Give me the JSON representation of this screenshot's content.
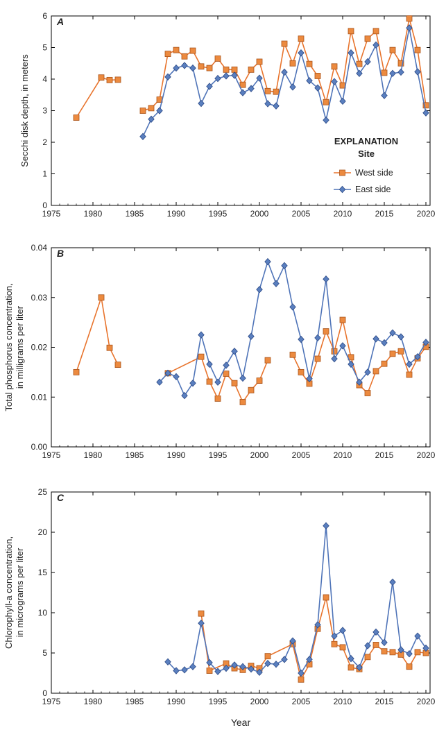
{
  "chart_data": [
    {
      "type": "line",
      "panel_label": "A",
      "ylabel_lines": [
        "Secchi disk depth, in meters"
      ],
      "xlabel": "",
      "xlim": [
        1975,
        2020.5
      ],
      "ylim": [
        0,
        6
      ],
      "xticks": [
        1975,
        1980,
        1985,
        1990,
        1995,
        2000,
        2005,
        2010,
        2015,
        2020
      ],
      "yticks": [
        "0",
        "1",
        "2",
        "3",
        "4",
        "5",
        "6"
      ],
      "legend": {
        "title": "EXPLANATION",
        "subtitle": "Site",
        "entries": [
          "West side",
          "East side"
        ]
      },
      "series": [
        {
          "name": "West side",
          "x": [
            1978,
            1981,
            1982,
            1983,
            null,
            1986,
            1987,
            1988,
            1989,
            1990,
            1991,
            1992,
            1993,
            1994,
            1995,
            1996,
            1997,
            1998,
            1999,
            2000,
            2001,
            2002,
            2003,
            2004,
            2005,
            2006,
            2007,
            2008,
            2009,
            2010,
            2011,
            2012,
            2013,
            2014,
            2015,
            2016,
            2017,
            2018,
            2019,
            2020
          ],
          "y": [
            2.78,
            4.05,
            3.97,
            3.98,
            null,
            3.0,
            3.08,
            3.35,
            4.8,
            4.92,
            4.72,
            4.9,
            4.4,
            4.35,
            4.65,
            4.3,
            4.3,
            3.82,
            4.3,
            4.55,
            3.62,
            3.6,
            5.12,
            4.5,
            5.28,
            4.48,
            4.1,
            3.27,
            4.4,
            3.8,
            5.52,
            4.48,
            5.28,
            5.52,
            4.2,
            4.92,
            4.5,
            5.92,
            4.92,
            3.17
          ]
        },
        {
          "name": "East side",
          "x": [
            1986,
            1987,
            1988,
            1989,
            1990,
            1991,
            1992,
            1993,
            1994,
            1995,
            1996,
            1997,
            1998,
            1999,
            2000,
            2001,
            2002,
            2003,
            2004,
            2005,
            2006,
            2007,
            2008,
            2009,
            2010,
            2011,
            2012,
            2013,
            2014,
            2015,
            2016,
            2017,
            2018,
            2019,
            2020
          ],
          "y": [
            2.18,
            2.73,
            3.0,
            4.07,
            4.35,
            4.43,
            4.35,
            3.23,
            3.77,
            4.02,
            4.1,
            4.12,
            3.57,
            3.7,
            4.03,
            3.22,
            3.15,
            4.22,
            3.75,
            4.83,
            3.95,
            3.72,
            2.7,
            3.92,
            3.3,
            4.83,
            4.18,
            4.55,
            5.08,
            3.48,
            4.18,
            4.22,
            5.62,
            4.23,
            2.93
          ]
        }
      ]
    },
    {
      "type": "line",
      "panel_label": "B",
      "ylabel_lines": [
        "Total phosphorus concentration,",
        "in milligrams per liter"
      ],
      "xlabel": "",
      "xlim": [
        1975,
        2020.5
      ],
      "ylim": [
        0,
        0.04
      ],
      "xticks": [
        1975,
        1980,
        1985,
        1990,
        1995,
        2000,
        2005,
        2010,
        2015,
        2020
      ],
      "yticks": [
        "0.00",
        "0.01",
        "0.02",
        "0.03",
        "0.04"
      ],
      "series": [
        {
          "name": "West side",
          "x": [
            1978,
            1981,
            1982,
            1983,
            null,
            1989,
            1993,
            1994,
            1995,
            1996,
            1997,
            1998,
            1999,
            2000,
            2001,
            null,
            2004,
            2005,
            2006,
            2007,
            2008,
            2009,
            2010,
            2011,
            2012,
            2013,
            2014,
            2015,
            2016,
            2017,
            2018,
            2019,
            2020
          ],
          "y": [
            0.015,
            0.03,
            0.0199,
            0.0165,
            null,
            0.0148,
            0.0181,
            0.0131,
            0.0097,
            0.0147,
            0.0128,
            0.009,
            0.0114,
            0.0133,
            0.0174,
            null,
            0.0185,
            0.015,
            0.0127,
            0.0177,
            0.0232,
            0.0192,
            0.0255,
            0.018,
            0.0124,
            0.0108,
            0.0152,
            0.0167,
            0.0187,
            0.0192,
            0.0145,
            0.0178,
            0.0201
          ]
        },
        {
          "name": "East side",
          "x": [
            1988,
            1989,
            1990,
            1991,
            1992,
            1993,
            1994,
            1995,
            1996,
            1997,
            1998,
            1999,
            2000,
            2001,
            2002,
            2003,
            2004,
            2005,
            2006,
            2007,
            2008,
            2009,
            2010,
            2011,
            2012,
            2013,
            2014,
            2015,
            2016,
            2017,
            2018,
            2019,
            2020
          ],
          "y": [
            0.013,
            0.0148,
            0.0141,
            0.0103,
            0.0128,
            0.0225,
            0.0166,
            0.013,
            0.0164,
            0.0192,
            0.0138,
            0.0222,
            0.0316,
            0.0372,
            0.0328,
            0.0364,
            0.0281,
            0.0216,
            0.0137,
            0.0219,
            0.0337,
            0.0177,
            0.0203,
            0.0166,
            0.013,
            0.015,
            0.0217,
            0.0209,
            0.0229,
            0.0221,
            0.0166,
            0.0181,
            0.021
          ]
        }
      ]
    },
    {
      "type": "line",
      "panel_label": "C",
      "ylabel_lines": [
        "Chlorophyll-a concentration,",
        "in micrograms per liter"
      ],
      "xlabel": "Year",
      "xlim": [
        1975,
        2020.5
      ],
      "ylim": [
        0,
        25
      ],
      "xticks": [
        1975,
        1980,
        1985,
        1990,
        1995,
        2000,
        2005,
        2010,
        2015,
        2020
      ],
      "yticks": [
        "0",
        "5",
        "10",
        "15",
        "20",
        "25"
      ],
      "series": [
        {
          "name": "West side",
          "x": [
            1993,
            1994,
            1996,
            1997,
            1998,
            1999,
            2000,
            2001,
            2004,
            2005,
            2006,
            2007,
            2008,
            2009,
            2010,
            2011,
            2012,
            2013,
            2014,
            2015,
            2016,
            2017,
            2018,
            2019,
            2020
          ],
          "y": [
            9.9,
            2.8,
            3.7,
            3.1,
            2.9,
            3.4,
            3.1,
            4.6,
            6.1,
            1.7,
            3.6,
            8.0,
            11.9,
            6.1,
            5.7,
            3.2,
            3.0,
            4.5,
            6.0,
            5.2,
            5.1,
            4.8,
            3.3,
            5.1,
            5.0
          ]
        },
        {
          "name": "East side",
          "x": [
            1989,
            1990,
            1991,
            1992,
            1993,
            1994,
            1995,
            1996,
            1997,
            1998,
            1999,
            2000,
            2001,
            2002,
            2003,
            2004,
            2005,
            2006,
            2007,
            2008,
            2009,
            2010,
            2011,
            2012,
            2013,
            2014,
            2015,
            2016,
            2017,
            2018,
            2019,
            2020
          ],
          "y": [
            3.9,
            2.8,
            2.9,
            3.3,
            8.7,
            3.8,
            2.7,
            3.1,
            3.5,
            3.3,
            3.0,
            2.6,
            3.7,
            3.6,
            4.2,
            6.5,
            2.5,
            4.2,
            8.5,
            20.8,
            7.1,
            7.8,
            4.3,
            3.2,
            5.9,
            7.6,
            6.3,
            13.8,
            5.4,
            4.9,
            7.1,
            5.6
          ]
        }
      ]
    }
  ],
  "colors": {
    "west_fill": "#ec8a3f",
    "west_line": "#e8742d",
    "west_stroke": "#a9531a",
    "east_fill": "#5a7fbf",
    "east_line": "#4f74b8",
    "east_stroke": "#2c4a86",
    "axis": "#000000"
  }
}
